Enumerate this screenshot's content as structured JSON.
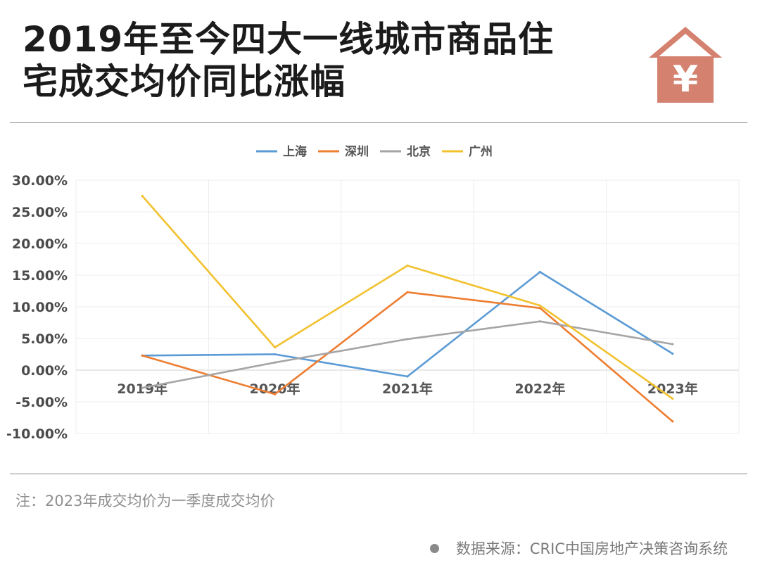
{
  "title": {
    "line1": "2019年至今四大一线城市商品住",
    "line2": "宅成交均价同比涨幅"
  },
  "icon": {
    "name": "house-yuan-icon",
    "symbol": "¥",
    "color": "#d4826f"
  },
  "chart_data": {
    "type": "line",
    "categories": [
      "2019年",
      "2020年",
      "2021年",
      "2022年",
      "2023年"
    ],
    "ylim": [
      -10,
      30
    ],
    "yticks": [
      30,
      25,
      20,
      15,
      10,
      5,
      0,
      -5,
      -10
    ],
    "ytick_labels": [
      "30.00%",
      "25.00%",
      "20.00%",
      "15.00%",
      "10.00%",
      "5.00%",
      "0.00%",
      "-5.00%",
      "-10.00%"
    ],
    "grid": true,
    "legend_position": "top",
    "series": [
      {
        "name": "上海",
        "color": "#5b9bd5",
        "values": [
          2.3,
          2.5,
          -1.0,
          15.5,
          2.6
        ]
      },
      {
        "name": "深圳",
        "color": "#ed7d31",
        "values": [
          2.3,
          -3.8,
          12.3,
          9.8,
          -8.1
        ]
      },
      {
        "name": "北京",
        "color": "#a5a5a5",
        "values": [
          -2.8,
          1.2,
          4.9,
          7.7,
          4.1
        ]
      },
      {
        "name": "广州",
        "color": "#f2c12e",
        "values": [
          27.5,
          3.6,
          16.5,
          10.2,
          -4.5
        ]
      }
    ]
  },
  "footer": {
    "note": "注：2023年成交均价为一季度成交均价",
    "source": "数据来源：CRIC中国房地产决策咨询系统"
  }
}
